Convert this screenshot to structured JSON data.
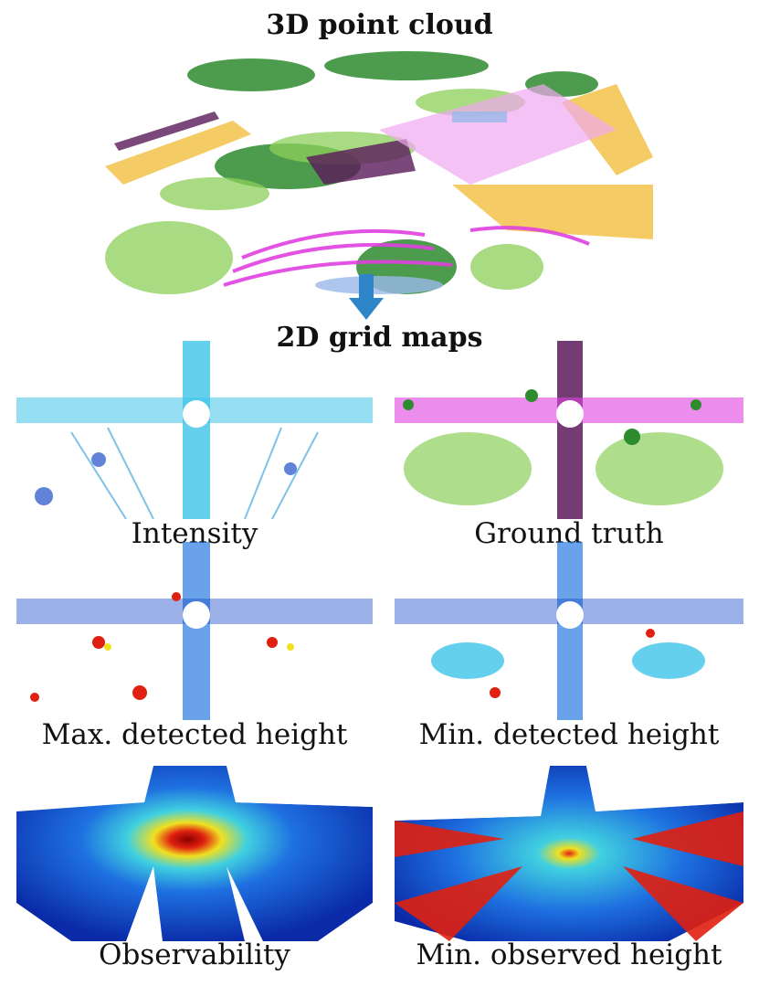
{
  "figure": {
    "title_top": "3D point cloud",
    "title_mid": "2D grid maps"
  },
  "panels": [
    {
      "id": "intensity",
      "label": "Intensity"
    },
    {
      "id": "ground-truth",
      "label": "Ground truth"
    },
    {
      "id": "max-detected",
      "label": "Max. detected height"
    },
    {
      "id": "min-detected",
      "label": "Min. detected height"
    },
    {
      "id": "observability",
      "label": "Observability"
    },
    {
      "id": "min-observed",
      "label": "Min. observed height"
    }
  ],
  "colors": {
    "arrow": "#2e86c8",
    "vegetation_dark": "#2e8b2e",
    "vegetation_light": "#8ccf5a",
    "road_magenta": "#e040e0",
    "sidewalk_orange": "#f3c24a",
    "building_purple": "#5a1a5a",
    "intensity_cyan": "#3fc4e8",
    "intensity_blue": "#2050c8",
    "heat_red": "#e02010",
    "heat_yellow": "#f0e020",
    "heat_dark_blue": "#0a2aa8"
  }
}
